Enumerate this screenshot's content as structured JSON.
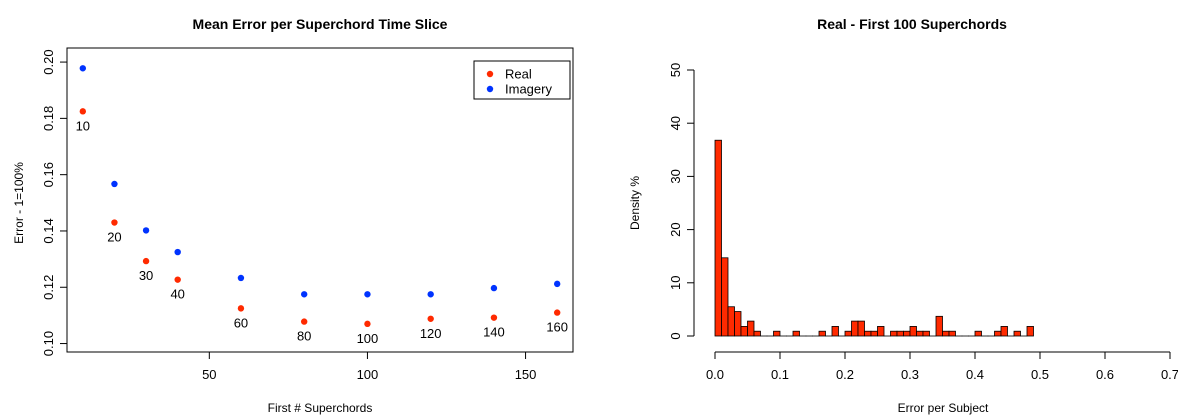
{
  "chart_data": [
    {
      "type": "scatter",
      "title": "Mean Error per Superchord Time Slice",
      "xlabel": "First # Superchords",
      "ylabel": "Error - 1=100%",
      "xlim": [
        5,
        165
      ],
      "ylim": [
        0.097,
        0.205
      ],
      "xticks": [
        50,
        100,
        150
      ],
      "yticks": [
        0.1,
        0.12,
        0.14,
        0.16,
        0.18,
        0.2
      ],
      "ytick_labels": [
        "0.10",
        "0.12",
        "0.14",
        "0.16",
        "0.18",
        "0.20"
      ],
      "legend": {
        "position": "top-right"
      },
      "series": [
        {
          "name": "Real",
          "color": "#ff2a00",
          "x": [
            10,
            20,
            30,
            40,
            60,
            80,
            100,
            120,
            140,
            160
          ],
          "y": [
            0.1825,
            0.143,
            0.1293,
            0.1227,
            0.1125,
            0.1078,
            0.107,
            0.1088,
            0.1092,
            0.111
          ],
          "labels": [
            "10",
            "20",
            "30",
            "40",
            "60",
            "80",
            "100",
            "120",
            "140",
            "160"
          ]
        },
        {
          "name": "Imagery",
          "color": "#0033ff",
          "x": [
            10,
            20,
            30,
            40,
            60,
            80,
            100,
            120,
            140,
            160
          ],
          "y": [
            0.1978,
            0.1567,
            0.1402,
            0.1325,
            0.1233,
            0.1175,
            0.1175,
            0.1175,
            0.1197,
            0.1212
          ]
        }
      ]
    },
    {
      "type": "bar",
      "title": "Real - First 100 Superchords",
      "xlabel": "Error per Subject",
      "ylabel": "Density %",
      "xlim": [
        0.0,
        0.7
      ],
      "ylim": [
        0,
        50
      ],
      "xticks": [
        0.0,
        0.1,
        0.2,
        0.3,
        0.4,
        0.5,
        0.6,
        0.7
      ],
      "xtick_labels": [
        "0.0",
        "0.1",
        "0.2",
        "0.3",
        "0.4",
        "0.5",
        "0.6",
        "0.7"
      ],
      "yticks": [
        0,
        10,
        20,
        30,
        40,
        50
      ],
      "ytick_labels": [
        "0",
        "10",
        "20",
        "30",
        "40",
        "50"
      ],
      "bar_color": "#ff2a00",
      "bin_width": 0.01,
      "bin_starts": [
        0.0,
        0.01,
        0.02,
        0.03,
        0.04,
        0.05,
        0.06,
        0.07,
        0.08,
        0.09,
        0.1,
        0.11,
        0.12,
        0.13,
        0.14,
        0.15,
        0.16,
        0.17,
        0.18,
        0.19,
        0.2,
        0.21,
        0.22,
        0.23,
        0.24,
        0.25,
        0.26,
        0.27,
        0.28,
        0.29,
        0.3,
        0.31,
        0.32,
        0.33,
        0.34,
        0.35,
        0.36,
        0.37,
        0.38,
        0.39,
        0.4,
        0.41,
        0.42,
        0.43,
        0.44,
        0.45,
        0.46,
        0.47,
        0.48
      ],
      "values": [
        36.8,
        14.7,
        5.5,
        4.6,
        1.8,
        2.8,
        0.9,
        0,
        0,
        0.9,
        0,
        0,
        0.9,
        0,
        0,
        0,
        0.9,
        0,
        1.8,
        0,
        0.9,
        2.8,
        2.8,
        0.9,
        0.9,
        1.8,
        0,
        0.9,
        0.9,
        0.9,
        1.8,
        0.9,
        0.9,
        0,
        3.7,
        0.9,
        0.9,
        0,
        0,
        0,
        0.9,
        0,
        0,
        0.9,
        1.8,
        0,
        0.9,
        0,
        1.8
      ]
    }
  ]
}
